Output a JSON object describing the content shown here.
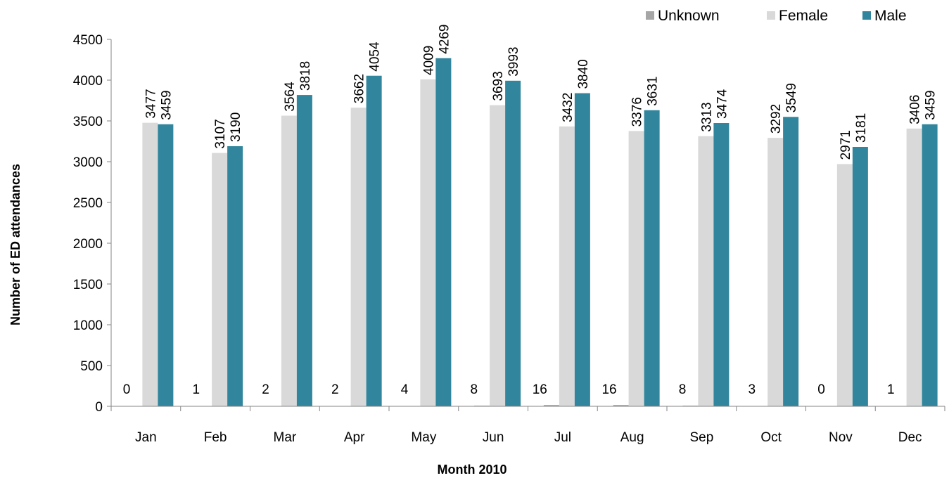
{
  "chart_data": {
    "type": "bar",
    "title": "",
    "xlabel": "Month 2010",
    "ylabel": "Number of ED attendances",
    "ylim": [
      0,
      4500
    ],
    "yticks": [
      0,
      500,
      1000,
      1500,
      2000,
      2500,
      3000,
      3500,
      4000,
      4500
    ],
    "categories": [
      "Jan",
      "Feb",
      "Mar",
      "Apr",
      "May",
      "Jun",
      "Jul",
      "Aug",
      "Sep",
      "Oct",
      "Nov",
      "Dec"
    ],
    "legend_position": "top-right",
    "grid": false,
    "series": [
      {
        "name": "Unknown",
        "color": "#a6a6a6",
        "values": [
          0,
          1,
          2,
          2,
          4,
          8,
          16,
          16,
          8,
          3,
          0,
          1
        ]
      },
      {
        "name": "Female",
        "color": "#d9d9d9",
        "values": [
          3477,
          3107,
          3564,
          3662,
          4009,
          3693,
          3432,
          3376,
          3313,
          3292,
          2971,
          3406
        ]
      },
      {
        "name": "Male",
        "color": "#31859c",
        "values": [
          3459,
          3190,
          3818,
          4054,
          4269,
          3993,
          3840,
          3631,
          3474,
          3549,
          3181,
          3459
        ]
      }
    ]
  }
}
